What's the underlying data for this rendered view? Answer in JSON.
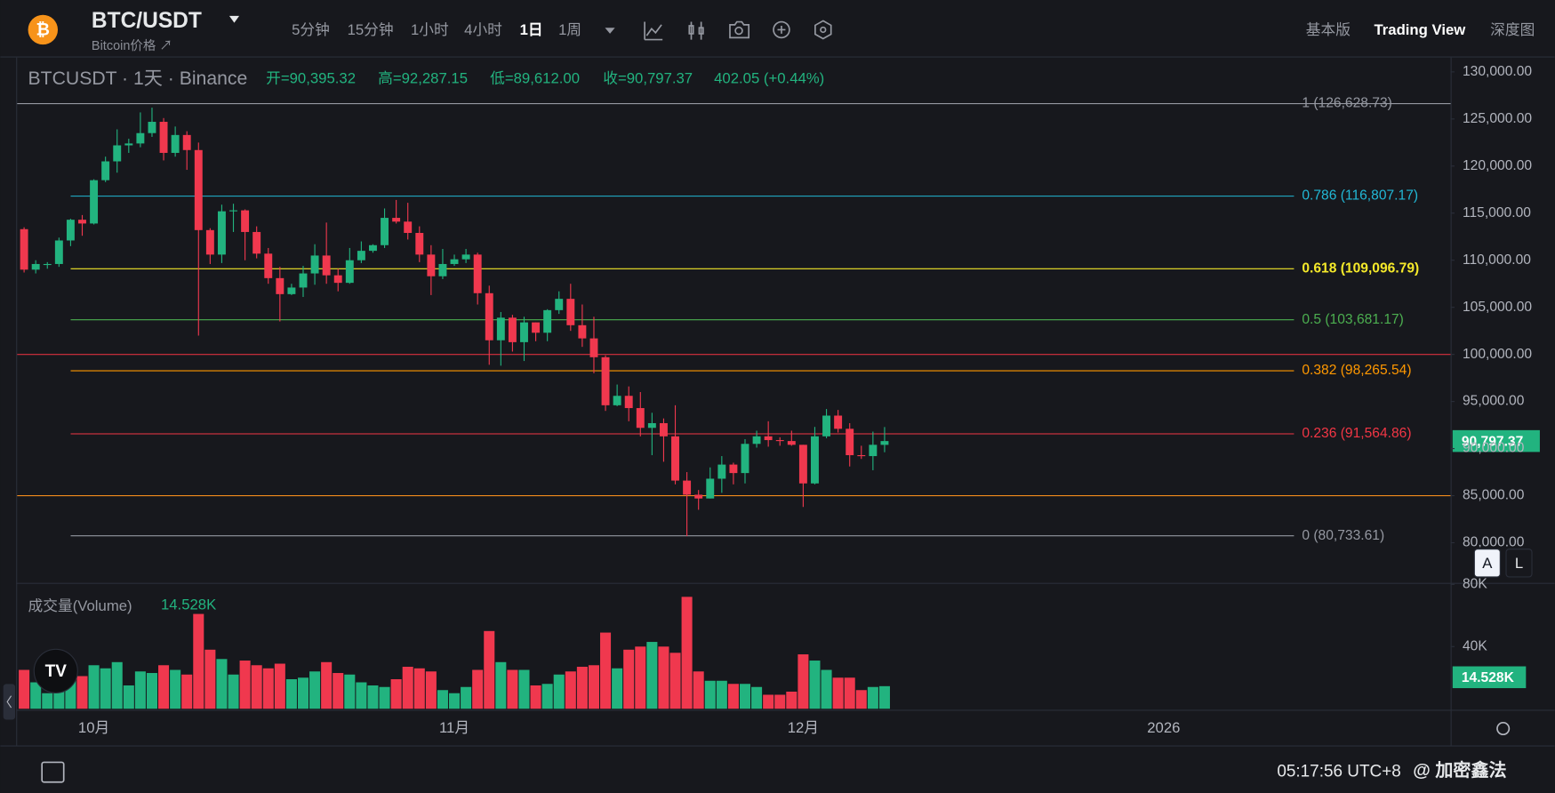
{
  "header": {
    "symbol": "BTC/USDT",
    "subtitle": "Bitcoin价格 ↗",
    "timeframes": [
      "5分钟",
      "15分钟",
      "1小时",
      "4小时",
      "1日",
      "1周"
    ],
    "active_timeframe": 4,
    "views": [
      "基本版",
      "Trading View",
      "深度图"
    ],
    "active_view": 1
  },
  "legend": {
    "title": "BTCUSDT · 1天 · Binance",
    "open": "开=90,395.32",
    "high": "高=92,287.15",
    "low": "低=89,612.00",
    "close": "收=90,797.37",
    "change": "402.05 (+0.44%)",
    "volume_title": "成交量(Volume)",
    "volume_value": "14.528K"
  },
  "chart_data": {
    "type": "candlestick",
    "up_color": "#22b37f",
    "down_color": "#f0384e",
    "open": [
      113300,
      109000,
      109600,
      109600,
      112100,
      114300,
      113900,
      118500,
      120500,
      122200,
      122400,
      123500,
      124700,
      121400,
      123300,
      121700,
      113200,
      110600,
      115200,
      115300,
      113000,
      110700,
      108100,
      106400,
      107100,
      108600,
      110500,
      108400,
      107600,
      110000,
      111000,
      111600,
      114500,
      114100,
      112900,
      110600,
      108300,
      109600,
      110100,
      110600,
      106500,
      101500,
      103900,
      101300,
      103400,
      102300,
      104700,
      105900,
      103100,
      101700,
      99700,
      94600,
      95600,
      94300,
      92200,
      92700,
      91300,
      86600,
      85100,
      84700,
      86800,
      88300,
      87400,
      90500,
      91300,
      90900,
      90800,
      90400,
      86300,
      91300,
      93500,
      92100,
      89300,
      89200,
      90395.32
    ],
    "high": [
      113500,
      110000,
      109800,
      112400,
      114400,
      114800,
      118600,
      121000,
      123900,
      122900,
      125700,
      126200,
      125100,
      124200,
      123700,
      122500,
      113400,
      115900,
      116000,
      115400,
      113600,
      111300,
      109300,
      107500,
      109400,
      111700,
      114000,
      109100,
      111300,
      112000,
      111700,
      115500,
      116400,
      116100,
      113600,
      111600,
      111200,
      110600,
      111200,
      110800,
      107300,
      104500,
      104200,
      104000,
      103400,
      104800,
      106700,
      107500,
      105300,
      104000,
      99900,
      96800,
      96600,
      96000,
      93800,
      93200,
      94600,
      87500,
      85600,
      88000,
      89200,
      88500,
      91000,
      91900,
      92900,
      91200,
      91900,
      90400,
      92300,
      94200,
      94100,
      92700,
      90300,
      91800,
      92287.15
    ],
    "low": [
      108700,
      108600,
      109100,
      109300,
      111500,
      112600,
      113800,
      118300,
      119300,
      121400,
      122000,
      123100,
      120600,
      121000,
      119600,
      102000,
      109600,
      109700,
      113000,
      110000,
      110200,
      107500,
      103500,
      106300,
      106100,
      107400,
      107500,
      106700,
      107500,
      109700,
      110800,
      111300,
      113900,
      112200,
      109800,
      106300,
      108000,
      109400,
      109700,
      105300,
      98900,
      98800,
      100300,
      99300,
      101400,
      101400,
      104300,
      102500,
      100800,
      98000,
      94000,
      94500,
      92900,
      91300,
      89300,
      88600,
      86200,
      80700,
      83500,
      84700,
      85300,
      86200,
      86300,
      90100,
      90200,
      90300,
      90300,
      83800,
      86200,
      91100,
      91700,
      88100,
      88900,
      87700,
      89612
    ],
    "close": [
      109000,
      109600,
      109600,
      112100,
      114300,
      113900,
      118500,
      120500,
      122200,
      122400,
      123500,
      124700,
      121400,
      123300,
      121700,
      113200,
      110600,
      115200,
      115300,
      113000,
      110700,
      108100,
      106400,
      107100,
      108600,
      110500,
      108400,
      107600,
      110000,
      111000,
      111600,
      114500,
      114100,
      112900,
      110600,
      108300,
      109600,
      110100,
      110600,
      106500,
      101500,
      103900,
      101300,
      103400,
      102300,
      104700,
      105900,
      103100,
      101700,
      99700,
      94600,
      95600,
      94300,
      92200,
      92700,
      91300,
      86600,
      85100,
      84700,
      86800,
      88300,
      87400,
      90500,
      91300,
      90900,
      90800,
      90400,
      86300,
      91300,
      93500,
      92100,
      89300,
      89200,
      90400,
      90797.37
    ],
    "volume": [
      25,
      17,
      10,
      12,
      22,
      21,
      28,
      26,
      30,
      15,
      24,
      23,
      28,
      25,
      22,
      61,
      38,
      32,
      22,
      31,
      28,
      26,
      29,
      19,
      20,
      24,
      30,
      23,
      22,
      17,
      15,
      14,
      19,
      27,
      26,
      24,
      12,
      10,
      14,
      25,
      50,
      30,
      25,
      25,
      15,
      16,
      22,
      24,
      27,
      28,
      49,
      26,
      38,
      40,
      43,
      40,
      36,
      72,
      24,
      18,
      18,
      16,
      16,
      14,
      9,
      9,
      11,
      35,
      31,
      25,
      20,
      20,
      12,
      14,
      14.528
    ],
    "ylim": [
      75740,
      131530
    ],
    "yticks": [
      {
        "value": 130000,
        "label": "130,000.00"
      },
      {
        "value": 125000,
        "label": "125,000.00"
      },
      {
        "value": 120000,
        "label": "120,000.00"
      },
      {
        "value": 115000,
        "label": "115,000.00"
      },
      {
        "value": 110000,
        "label": "110,000.00"
      },
      {
        "value": 105000,
        "label": "105,000.00"
      },
      {
        "value": 100000,
        "label": "100,000.00"
      },
      {
        "value": 95000,
        "label": "95,000.00"
      },
      {
        "value": 90000,
        "label": "90,000.00"
      },
      {
        "value": 85000,
        "label": "85,000.00"
      },
      {
        "value": 80000,
        "label": "80,000.00"
      }
    ],
    "volume_ylim": [
      0,
      81
    ],
    "volume_ticks": [
      {
        "value": 80,
        "label": "80K"
      },
      {
        "value": 40,
        "label": "40K"
      }
    ],
    "xticks": [
      {
        "value": 6,
        "label": "10月"
      },
      {
        "value": 37,
        "label": "11月"
      },
      {
        "value": 67,
        "label": "12月"
      },
      {
        "value": 98,
        "label": "2026"
      }
    ],
    "last_price": {
      "value": 90797.37,
      "label": "90,797.37"
    },
    "last_volume": {
      "value": 14.528,
      "label": "14.528K"
    },
    "fib_levels": [
      {
        "value": 126628.73,
        "label": "1 (126,628.73)",
        "color": "#9598a1"
      },
      {
        "value": 116807.17,
        "label": "0.786 (116,807.17)",
        "color": "#22b8d6"
      },
      {
        "value": 109096.79,
        "label": "0.618 (109,096.79)",
        "color": "#f5e92a"
      },
      {
        "value": 103681.17,
        "label": "0.5 (103,681.17)",
        "color": "#4caf50"
      },
      {
        "value": 98265.54,
        "label": "0.382 (98,265.54)",
        "color": "#ff9800"
      },
      {
        "value": 91564.86,
        "label": "0.236 (91,564.86)",
        "color": "#f23645"
      },
      {
        "value": 80733.61,
        "label": "0 (80,733.61)",
        "color": "#9598a1"
      }
    ],
    "horizontal_lines": [
      {
        "value": 100000,
        "color": "#d8303f"
      },
      {
        "value": 85000,
        "color": "#f08a1c"
      }
    ]
  },
  "scale_buttons": [
    "A",
    "L"
  ],
  "footer": {
    "time": "05:17:56 UTC+8",
    "watermark": "@ 加密鑫法"
  }
}
